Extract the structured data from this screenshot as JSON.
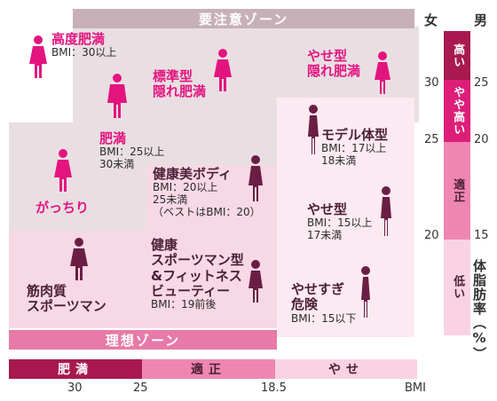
{
  "zones": {
    "caution": "要注意ゾーン",
    "ideal": "理想ゾーン"
  },
  "categories": [
    {
      "key": "high_obesity",
      "name": "高度肥満",
      "bmi": "BMI：30以上"
    },
    {
      "key": "standard_hidden",
      "name_lines": [
        "標準型",
        "隠れ肥満"
      ]
    },
    {
      "key": "thin_hidden",
      "name_lines": [
        "やせ型",
        "隠れ肥満"
      ]
    },
    {
      "key": "obese",
      "name": "肥満",
      "bmi_lines": [
        "BMI：25以上",
        "30未満"
      ]
    },
    {
      "key": "model",
      "name": "モデル体型",
      "bmi_lines": [
        "BMI：17以上",
        "18未満"
      ]
    },
    {
      "key": "stocky",
      "name": "がっちり"
    },
    {
      "key": "healthy_beauty",
      "name": "健康美ボディ",
      "bmi_lines": [
        "BMI：20以上",
        "25未満",
        "（ベストはBMI：20）"
      ]
    },
    {
      "key": "thin",
      "name": "やせ型",
      "bmi_lines": [
        "BMI：15以上",
        "17未満"
      ]
    },
    {
      "key": "muscular",
      "name_lines": [
        "筋肉質",
        "スポーツマン"
      ]
    },
    {
      "key": "healthy_sports",
      "name_lines": [
        "健康",
        "スポーツマン型",
        "&フィットネス",
        "ビューティー"
      ],
      "bmi": "BMI：19前後"
    },
    {
      "key": "too_thin",
      "name_lines": [
        "やせすぎ",
        "危険"
      ],
      "bmi": "BMI：15以下"
    }
  ],
  "axis": {
    "female": "女",
    "male": "男",
    "female_ticks": [
      "30",
      "25",
      "20"
    ],
    "male_ticks": [
      "25",
      "20",
      "15"
    ],
    "y_title": "体脂肪率（%）",
    "x_ticks": [
      "30",
      "25",
      "18.5",
      "BMI"
    ]
  },
  "fat_levels": [
    {
      "label": "高い",
      "color": "#a8194f"
    },
    {
      "label": "やや高い",
      "color": "#dd1e78"
    },
    {
      "label": "適正",
      "color": "#ef86b2"
    },
    {
      "label": "低い",
      "color": "#f9d3e3"
    }
  ],
  "bmi_bands": [
    {
      "label": "肥満",
      "color": "#a8194f"
    },
    {
      "label": "適正",
      "color": "#ef86b2"
    },
    {
      "label": "やせ",
      "color": "#f9d3e3"
    }
  ],
  "colors": {
    "caution_band": "#c7b0b8",
    "ideal_band": "#e77aa7",
    "pink_figure": "#e4147f",
    "dark_figure": "#6a1e44"
  }
}
